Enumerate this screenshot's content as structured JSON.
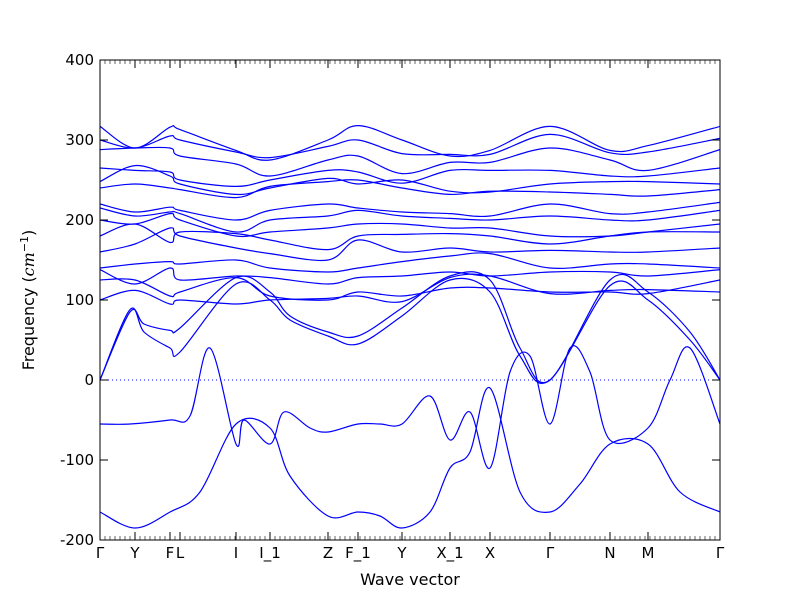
{
  "chart_data": {
    "type": "line",
    "title": "",
    "xlabel": "Wave vector",
    "ylabel_prefix": "Frequency (",
    "ylabel_unit_base": "cm",
    "ylabel_unit_exp": "−1",
    "ylabel_suffix": ")",
    "ylim": [
      -200,
      400
    ],
    "xlim": [
      0,
      31
    ],
    "yticks": [
      -200,
      -100,
      0,
      100,
      200,
      300,
      400
    ],
    "xticks": [
      {
        "label": "Γ",
        "x": 0
      },
      {
        "label": "Y",
        "x": 1.75
      },
      {
        "label": "F",
        "x": 3.5
      },
      {
        "label": "L",
        "x": 4
      },
      {
        "label": "I",
        "x": 6.8
      },
      {
        "label": "I_1",
        "x": 8.5
      },
      {
        "label": "Z",
        "x": 11.4
      },
      {
        "label": "F_1",
        "x": 12.9
      },
      {
        "label": "Y",
        "x": 15.1
      },
      {
        "label": "X_1",
        "x": 17.5
      },
      {
        "label": "X",
        "x": 19.5
      },
      {
        "label": "Γ",
        "x": 22.5
      },
      {
        "label": "N",
        "x": 25.5
      },
      {
        "label": "M",
        "x": 27.4
      },
      {
        "label": "Γ",
        "x": 31
      }
    ],
    "line_color": "#0000ff",
    "zero_line": true,
    "grid": false,
    "series": [
      {
        "x": [
          0,
          1.75,
          3.5,
          4,
          6.8,
          8.5,
          11.4,
          12.9,
          15.1,
          17.5,
          19.5,
          22.5,
          25.5,
          27.4,
          31
        ],
        "y": [
          317,
          290,
          316,
          313,
          287,
          275,
          300,
          318,
          300,
          280,
          287,
          317,
          287,
          293,
          317
        ]
      },
      {
        "x": [
          0,
          1.75,
          3.5,
          4,
          6.8,
          8.5,
          11.4,
          12.9,
          15.1,
          17.5,
          19.5,
          22.5,
          25.5,
          27.4,
          31
        ],
        "y": [
          300,
          290,
          305,
          300,
          285,
          278,
          292,
          300,
          283,
          282,
          282,
          307,
          284,
          285,
          302
        ]
      },
      {
        "x": [
          0,
          1.75,
          3.5,
          4,
          6.8,
          8.5,
          11.4,
          12.9,
          15.1,
          17.5,
          19.5,
          22.5,
          25.5,
          27.4,
          31
        ],
        "y": [
          288,
          290,
          290,
          280,
          270,
          255,
          275,
          280,
          258,
          272,
          272,
          290,
          275,
          262,
          288
        ]
      },
      {
        "x": [
          0,
          1.75,
          3.5,
          4,
          6.8,
          8.5,
          11.4,
          12.9,
          15.1,
          17.5,
          19.5,
          22.5,
          25.5,
          27.4,
          31
        ],
        "y": [
          265,
          262,
          260,
          250,
          242,
          250,
          262,
          260,
          246,
          262,
          262,
          262,
          255,
          255,
          265
        ]
      },
      {
        "x": [
          0,
          1.75,
          3.5,
          4,
          6.8,
          8.5,
          11.4,
          12.9,
          15.1,
          17.5,
          19.5,
          22.5,
          25.5,
          27.4,
          31
        ],
        "y": [
          248,
          268,
          255,
          245,
          232,
          240,
          252,
          245,
          250,
          236,
          235,
          245,
          248,
          248,
          245
        ]
      },
      {
        "x": [
          0,
          1.75,
          3.5,
          4,
          6.8,
          8.5,
          11.4,
          12.9,
          15.1,
          17.5,
          19.5,
          22.5,
          25.5,
          27.4,
          31
        ],
        "y": [
          240,
          245,
          240,
          238,
          228,
          242,
          248,
          250,
          240,
          232,
          236,
          235,
          232,
          230,
          238
        ]
      },
      {
        "x": [
          0,
          1.75,
          3.5,
          4,
          6.8,
          8.5,
          11.4,
          12.9,
          15.1,
          17.5,
          19.5,
          22.5,
          25.5,
          27.4,
          31
        ],
        "y": [
          220,
          210,
          216,
          212,
          200,
          212,
          220,
          215,
          210,
          208,
          205,
          220,
          208,
          210,
          222
        ]
      },
      {
        "x": [
          0,
          1.75,
          3.5,
          4,
          6.8,
          8.5,
          11.4,
          12.9,
          15.1,
          17.5,
          19.5,
          22.5,
          25.5,
          27.4,
          31
        ],
        "y": [
          215,
          205,
          210,
          208,
          185,
          200,
          205,
          212,
          205,
          202,
          200,
          205,
          200,
          200,
          212
        ]
      },
      {
        "x": [
          0,
          1.75,
          3.5,
          4,
          6.8,
          8.5,
          11.4,
          12.9,
          15.1,
          17.5,
          19.5,
          22.5,
          25.5,
          27.4,
          31
        ],
        "y": [
          200,
          195,
          208,
          200,
          180,
          185,
          190,
          195,
          195,
          190,
          190,
          180,
          180,
          185,
          195
        ]
      },
      {
        "x": [
          0,
          1.75,
          3.5,
          4,
          6.8,
          8.5,
          11.4,
          12.9,
          15.1,
          17.5,
          19.5,
          22.5,
          25.5,
          27.4,
          31
        ],
        "y": [
          180,
          195,
          172,
          185,
          183,
          175,
          163,
          180,
          182,
          183,
          180,
          170,
          180,
          185,
          185
        ]
      },
      {
        "x": [
          0,
          1.75,
          3.5,
          4,
          6.8,
          8.5,
          11.4,
          12.9,
          15.1,
          17.5,
          19.5,
          22.5,
          25.5,
          27.4,
          31
        ],
        "y": [
          160,
          170,
          190,
          180,
          165,
          158,
          150,
          175,
          160,
          165,
          160,
          162,
          160,
          160,
          165
        ]
      },
      {
        "x": [
          0,
          1.75,
          3.5,
          4,
          6.8,
          8.5,
          11.4,
          12.9,
          15.1,
          17.5,
          19.5,
          22.5,
          25.5,
          27.4,
          31
        ],
        "y": [
          140,
          145,
          148,
          145,
          150,
          140,
          135,
          140,
          148,
          155,
          158,
          140,
          145,
          145,
          140
        ]
      },
      {
        "x": [
          0,
          1.75,
          3.5,
          4,
          6.8,
          8.5,
          11.4,
          12.9,
          15.1,
          17.5,
          19.5,
          22.5,
          25.5,
          27.4,
          31
        ],
        "y": [
          138,
          120,
          140,
          125,
          130,
          128,
          120,
          128,
          130,
          135,
          130,
          135,
          135,
          130,
          138
        ]
      },
      {
        "x": [
          0,
          1.75,
          3.5,
          4,
          6.8,
          8.5,
          11.4,
          12.9,
          15.1,
          17.5,
          19.5,
          22.5,
          25.5,
          27.4,
          31
        ],
        "y": [
          125,
          125,
          105,
          110,
          128,
          105,
          100,
          110,
          105,
          115,
          115,
          110,
          110,
          108,
          125
        ]
      },
      {
        "x": [
          0,
          1.75,
          3.5,
          4,
          6.8,
          8.5,
          11.4,
          12.9,
          15.1,
          17.5,
          19.5,
          22.5,
          25.5,
          27.4,
          31
        ],
        "y": [
          100,
          112,
          95,
          100,
          95,
          100,
          102,
          105,
          98,
          128,
          130,
          108,
          112,
          113,
          110
        ]
      },
      {
        "x": [
          0,
          1.5,
          2.2,
          3.5,
          4,
          6.8,
          8.5,
          9.5,
          11.4,
          12.9,
          15.1,
          17.5,
          19.5,
          21,
          22.5,
          25.5,
          27.4,
          29.5,
          31
        ],
        "y": [
          0,
          85,
          70,
          62,
          65,
          128,
          110,
          80,
          60,
          55,
          90,
          130,
          125,
          40,
          0,
          125,
          110,
          60,
          0
        ]
      },
      {
        "x": [
          0,
          1.5,
          2.2,
          3.5,
          4,
          6.8,
          8.5,
          9.5,
          11.4,
          12.9,
          15.1,
          17.5,
          19.5,
          21,
          22.5,
          25.5,
          27.4,
          29.5,
          31
        ],
        "y": [
          0,
          88,
          60,
          40,
          35,
          120,
          100,
          75,
          55,
          45,
          80,
          125,
          110,
          30,
          0,
          118,
          100,
          50,
          0
        ]
      },
      {
        "x": [
          0,
          1.5,
          3.5,
          4.5,
          5.5,
          6.8,
          7.2,
          8.5,
          9.2,
          10.5,
          11.4,
          12.9,
          14,
          15.1,
          16.5,
          17.5,
          18.5,
          19.5,
          20.5,
          21.5,
          22.5,
          23.5,
          24.5,
          25.5,
          27.4,
          28.5,
          29.5,
          31
        ],
        "y": [
          -55,
          -55,
          -50,
          -45,
          40,
          -80,
          -50,
          -80,
          -40,
          -60,
          -65,
          -55,
          -55,
          -55,
          -20,
          -75,
          -40,
          -110,
          10,
          30,
          -55,
          40,
          10,
          -75,
          -60,
          0,
          40,
          -55
        ]
      },
      {
        "x": [
          0,
          1.75,
          3.5,
          5,
          6.8,
          8.5,
          9.5,
          11.4,
          12.9,
          14,
          15.1,
          16.5,
          17.5,
          18.5,
          19.5,
          21,
          22.5,
          24,
          25.5,
          27.4,
          29,
          31
        ],
        "y": [
          -165,
          -185,
          -165,
          -140,
          -55,
          -60,
          -120,
          -170,
          -165,
          -170,
          -185,
          -165,
          -110,
          -90,
          -10,
          -140,
          -165,
          -130,
          -80,
          -80,
          -140,
          -165
        ]
      }
    ]
  }
}
